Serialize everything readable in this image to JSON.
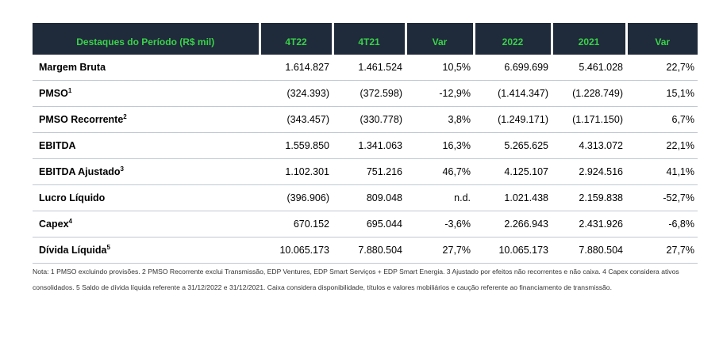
{
  "table": {
    "headers": [
      "Destaques do Período (R$ mil)",
      "4T22",
      "4T21",
      "Var",
      "2022",
      "2021",
      "Var"
    ],
    "rows": [
      {
        "label": "Margem Bruta",
        "sup": "",
        "values": [
          "1.614.827",
          "1.461.524",
          "10,5%",
          "6.699.699",
          "5.461.028",
          "22,7%"
        ]
      },
      {
        "label": "PMSO",
        "sup": "1",
        "values": [
          "(324.393)",
          "(372.598)",
          "-12,9%",
          "(1.414.347)",
          "(1.228.749)",
          "15,1%"
        ]
      },
      {
        "label": "PMSO Recorrente",
        "sup": "2",
        "values": [
          "(343.457)",
          "(330.778)",
          "3,8%",
          "(1.249.171)",
          "(1.171.150)",
          "6,7%"
        ]
      },
      {
        "label": "EBITDA",
        "sup": "",
        "values": [
          "1.559.850",
          "1.341.063",
          "16,3%",
          "5.265.625",
          "4.313.072",
          "22,1%"
        ]
      },
      {
        "label": "EBITDA Ajustado",
        "sup": "3",
        "values": [
          "1.102.301",
          "751.216",
          "46,7%",
          "4.125.107",
          "2.924.516",
          "41,1%"
        ]
      },
      {
        "label": "Lucro Líquido",
        "sup": "",
        "values": [
          "(396.906)",
          "809.048",
          "n.d.",
          "1.021.438",
          "2.159.838",
          "-52,7%"
        ]
      },
      {
        "label": "Capex",
        "sup": "4",
        "values": [
          "670.152",
          "695.044",
          "-3,6%",
          "2.266.943",
          "2.431.926",
          "-6,8%"
        ]
      },
      {
        "label": "Dívida Líquida",
        "sup": "5",
        "values": [
          "10.065.173",
          "7.880.504",
          "27,7%",
          "10.065.173",
          "7.880.504",
          "27,7%"
        ]
      }
    ]
  },
  "note": "Nota: 1 PMSO excluindo provisões. 2 PMSO Recorrente exclui Transmissão, EDP Ventures, EDP Smart Serviços + EDP Smart Energia. 3 Ajustado por efeitos não recorrentes e não caixa. 4 Capex considera ativos consolidados. 5 Saldo de dívida líquida referente a 31/12/2022 e 31/12/2021. Caixa considera disponibilidade, títulos e valores mobiliários e caução referente ao financiamento de transmissão."
}
